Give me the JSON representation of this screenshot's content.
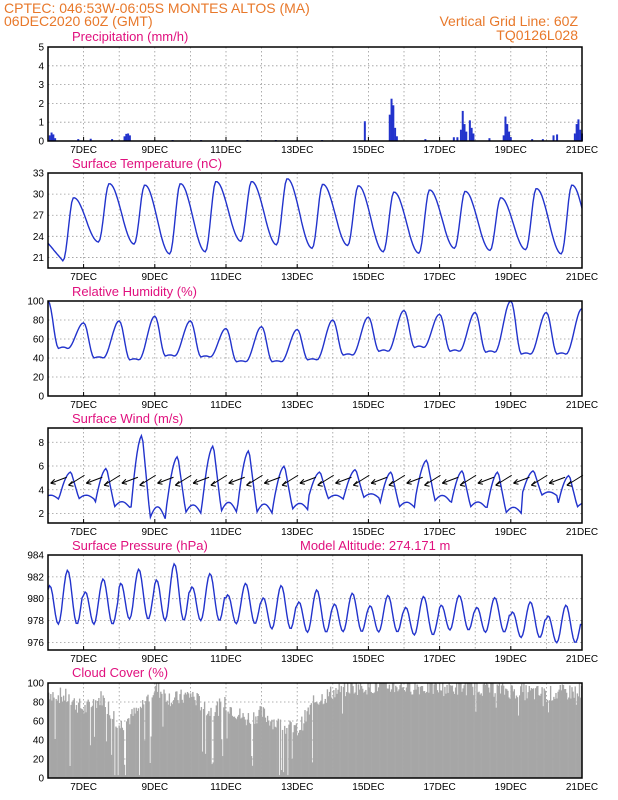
{
  "header": {
    "left_line1": "CPTEC:   046:53W-06:05S   MONTES ALTOS (MA)",
    "left_line2": "06DEC2020 60Z (GMT)",
    "right_line1": "Vertical Grid Line: 60Z",
    "right_line2": "TQ0126L028"
  },
  "colors": {
    "header": "#e8782a",
    "title": "#e0107e",
    "series": "#2233cc",
    "cloud": "#a6a6a6"
  },
  "chart_data": [
    {
      "id": "precip",
      "type": "bar",
      "title": "Precipitation (mm/h)",
      "ylim": [
        0,
        5
      ],
      "yticks": [
        "0",
        "1",
        "2",
        "3",
        "4",
        "5"
      ],
      "xticks": [
        "7DEC",
        "9DEC",
        "11DEC",
        "13DEC",
        "15DEC",
        "17DEC",
        "19DEC",
        "21DEC"
      ],
      "bars": [
        [
          6.05,
          0.3
        ],
        [
          6.1,
          0.45
        ],
        [
          6.15,
          0.35
        ],
        [
          6.2,
          0.15
        ],
        [
          6.85,
          0.1
        ],
        [
          7.2,
          0.12
        ],
        [
          7.8,
          0.1
        ],
        [
          8.15,
          0.25
        ],
        [
          8.2,
          0.38
        ],
        [
          8.25,
          0.4
        ],
        [
          8.3,
          0.3
        ],
        [
          9.5,
          0.05
        ],
        [
          10.3,
          0.05
        ],
        [
          11.6,
          0.05
        ],
        [
          12.4,
          0.05
        ],
        [
          13.7,
          0.05
        ],
        [
          14.9,
          1.05
        ],
        [
          15.6,
          1.4
        ],
        [
          15.65,
          2.25
        ],
        [
          15.7,
          1.9
        ],
        [
          15.75,
          0.7
        ],
        [
          15.8,
          0.25
        ],
        [
          16.6,
          0.1
        ],
        [
          17.4,
          0.2
        ],
        [
          17.5,
          0.2
        ],
        [
          17.6,
          0.6
        ],
        [
          17.65,
          1.6
        ],
        [
          17.7,
          0.9
        ],
        [
          17.75,
          0.5
        ],
        [
          17.85,
          1.1
        ],
        [
          17.9,
          0.7
        ],
        [
          17.95,
          0.4
        ],
        [
          18.4,
          0.15
        ],
        [
          18.8,
          0.3
        ],
        [
          18.85,
          1.3
        ],
        [
          18.9,
          0.9
        ],
        [
          18.95,
          0.5
        ],
        [
          19.0,
          0.2
        ],
        [
          19.6,
          0.1
        ],
        [
          19.9,
          0.1
        ],
        [
          20.2,
          0.3
        ],
        [
          20.3,
          0.35
        ],
        [
          20.8,
          0.4
        ],
        [
          20.85,
          0.9
        ],
        [
          20.9,
          1.15
        ],
        [
          20.95,
          0.6
        ],
        [
          21.0,
          0.4
        ]
      ]
    },
    {
      "id": "temp",
      "type": "line",
      "title": "Surface Temperature (nC)",
      "ylim": [
        19.5,
        33
      ],
      "yticks": [
        "21",
        "24",
        "27",
        "30",
        "33"
      ],
      "ytick_values": [
        21,
        24,
        27,
        30,
        33
      ],
      "xticks": [
        "7DEC",
        "9DEC",
        "11DEC",
        "13DEC",
        "15DEC",
        "17DEC",
        "19DEC",
        "21DEC"
      ],
      "daily_max": [
        29.5,
        31.5,
        31.3,
        31.5,
        31.8,
        31.8,
        32.2,
        31.4,
        31.2,
        30.3,
        30.6,
        30.4,
        29.5,
        30.8,
        31.3,
        31.5,
        30.6
      ],
      "daily_min": [
        20.5,
        23.2,
        22.9,
        21.5,
        21.8,
        23.3,
        22.8,
        22.3,
        22.7,
        21.8,
        21.6,
        22.3,
        22.0,
        22.1,
        21.5,
        21.7,
        25.8
      ]
    },
    {
      "id": "rh",
      "type": "line",
      "title": "Relative Humidity (%)",
      "ylim": [
        0,
        100
      ],
      "yticks": [
        "0",
        "20",
        "40",
        "60",
        "80",
        "100"
      ],
      "ytick_values": [
        0,
        20,
        40,
        60,
        80,
        100
      ],
      "xticks": [
        "7DEC",
        "9DEC",
        "11DEC",
        "13DEC",
        "15DEC",
        "17DEC",
        "19DEC",
        "21DEC"
      ],
      "daily_min": [
        50,
        40,
        38,
        42,
        41,
        36,
        36,
        38,
        43,
        47,
        51,
        47,
        46,
        44,
        44,
        46,
        50
      ],
      "daily_max": [
        100,
        77,
        79,
        84,
        79,
        71,
        73,
        70,
        80,
        83,
        90,
        86,
        88,
        100,
        88,
        92,
        84
      ]
    },
    {
      "id": "wind",
      "type": "line",
      "title": "Surface Wind (m/s)",
      "ylim": [
        1.2,
        9.2
      ],
      "yticks": [
        "2",
        "4",
        "6",
        "8"
      ],
      "ytick_values": [
        2,
        4,
        6,
        8
      ],
      "xticks": [
        "7DEC",
        "9DEC",
        "11DEC",
        "13DEC",
        "15DEC",
        "17DEC",
        "19DEC",
        "21DEC"
      ],
      "daily_max": [
        5.5,
        5.8,
        8.6,
        6.8,
        7.7,
        7.3,
        6.0,
        5.5,
        5.7,
        5.5,
        6.5,
        5.6,
        5.5,
        5.6,
        5.2,
        6.6
      ],
      "daily_min": [
        3.2,
        2.5,
        1.5,
        2.0,
        2.1,
        2.0,
        2.3,
        3.2,
        3.3,
        2.5,
        3.0,
        2.5,
        2.0,
        3.5,
        2.5,
        2.2
      ]
    },
    {
      "id": "pres",
      "type": "line",
      "title": "Surface Pressure (hPa)",
      "annotation": "Model Altitude: 274.171 m",
      "ylim": [
        975.3,
        984
      ],
      "yticks": [
        "976",
        "978",
        "980",
        "982",
        "984"
      ],
      "ytick_values": [
        976,
        978,
        980,
        982,
        984
      ],
      "xticks": [
        "7DEC",
        "9DEC",
        "11DEC",
        "13DEC",
        "15DEC",
        "17DEC",
        "19DEC",
        "21DEC"
      ],
      "daily_max": [
        982.6,
        981.8,
        982.7,
        983.2,
        982.3,
        981.4,
        981.2,
        980.8,
        980.5,
        980.3,
        980.2,
        980.3,
        980.1,
        979.7,
        979.4,
        978.7,
        978.3
      ],
      "daily_min": [
        977.0,
        977.1,
        977.5,
        977.3,
        977.4,
        977.2,
        976.7,
        976.4,
        976.5,
        976.5,
        976.2,
        976.7,
        976.5,
        976.0,
        975.5,
        975.3,
        975.3
      ]
    },
    {
      "id": "cloud",
      "type": "area",
      "title": "Cloud Cover (%)",
      "ylim": [
        0,
        100
      ],
      "yticks": [
        "0",
        "20",
        "40",
        "60",
        "80",
        "100"
      ],
      "ytick_values": [
        0,
        20,
        40,
        60,
        80,
        100
      ],
      "xticks": [
        "7DEC",
        "9DEC",
        "11DEC",
        "13DEC",
        "15DEC",
        "17DEC",
        "19DEC",
        "21DEC"
      ],
      "regime": [
        [
          6.0,
          90
        ],
        [
          6.5,
          85
        ],
        [
          7.0,
          72
        ],
        [
          7.5,
          85
        ],
        [
          8.0,
          55
        ],
        [
          8.5,
          70
        ],
        [
          9.0,
          95
        ],
        [
          9.5,
          82
        ],
        [
          10.0,
          88
        ],
        [
          10.5,
          70
        ],
        [
          11.0,
          78
        ],
        [
          11.5,
          62
        ],
        [
          12.0,
          68
        ],
        [
          12.5,
          55
        ],
        [
          13.0,
          50
        ],
        [
          13.5,
          82
        ],
        [
          14.0,
          90
        ],
        [
          14.5,
          96
        ],
        [
          15.0,
          97
        ],
        [
          16.0,
          97
        ],
        [
          17.0,
          95
        ],
        [
          18.0,
          96
        ],
        [
          19.0,
          92
        ],
        [
          20.0,
          88
        ],
        [
          21.0,
          92
        ]
      ]
    }
  ]
}
